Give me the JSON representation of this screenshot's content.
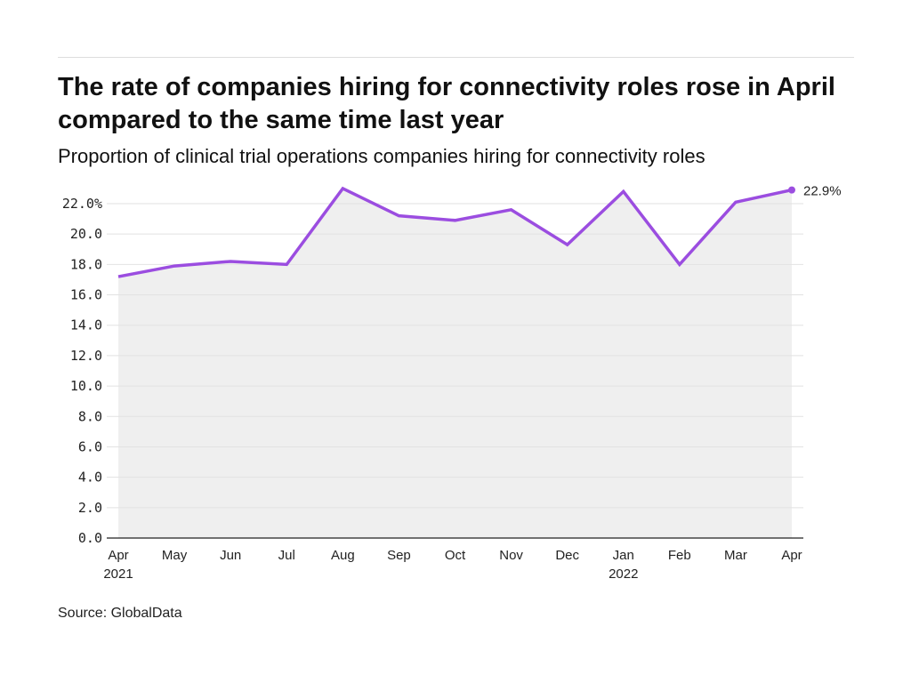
{
  "title": "The rate of companies hiring for connectivity roles rose in April compared to the same time last year",
  "subtitle": "Proportion of clinical trial operations companies hiring for connectivity roles",
  "source": "Source: GlobalData",
  "chart_data": {
    "type": "area",
    "title": "The rate of companies hiring for connectivity roles rose in April compared to the same time last year",
    "subtitle": "Proportion of clinical trial operations companies hiring for connectivity roles",
    "categories": [
      "Apr 2021",
      "May",
      "Jun",
      "Jul",
      "Aug",
      "Sep",
      "Oct",
      "Nov",
      "Dec",
      "Jan 2022",
      "Feb",
      "Mar",
      "Apr"
    ],
    "x_tick_labels": [
      [
        "Apr",
        "2021"
      ],
      [
        "May"
      ],
      [
        "Jun"
      ],
      [
        "Jul"
      ],
      [
        "Aug"
      ],
      [
        "Sep"
      ],
      [
        "Oct"
      ],
      [
        "Nov"
      ],
      [
        "Dec"
      ],
      [
        "Jan",
        "2022"
      ],
      [
        "Feb"
      ],
      [
        "Mar"
      ],
      [
        "Apr"
      ]
    ],
    "values": [
      17.2,
      17.9,
      18.2,
      18.0,
      23.0,
      21.2,
      20.9,
      21.6,
      19.3,
      22.8,
      18.0,
      22.1,
      22.9
    ],
    "y_tick_labels": [
      "0.0",
      "2.0",
      "4.0",
      "6.0",
      "8.0",
      "10.0",
      "12.0",
      "14.0",
      "16.0",
      "18.0",
      "20.0",
      "22.0%"
    ],
    "ylim": [
      0,
      22
    ],
    "end_label": "22.9%",
    "grid": true,
    "line_color": "#9b4de0",
    "fill_color": "#efefef",
    "xlabel": "",
    "ylabel": ""
  }
}
